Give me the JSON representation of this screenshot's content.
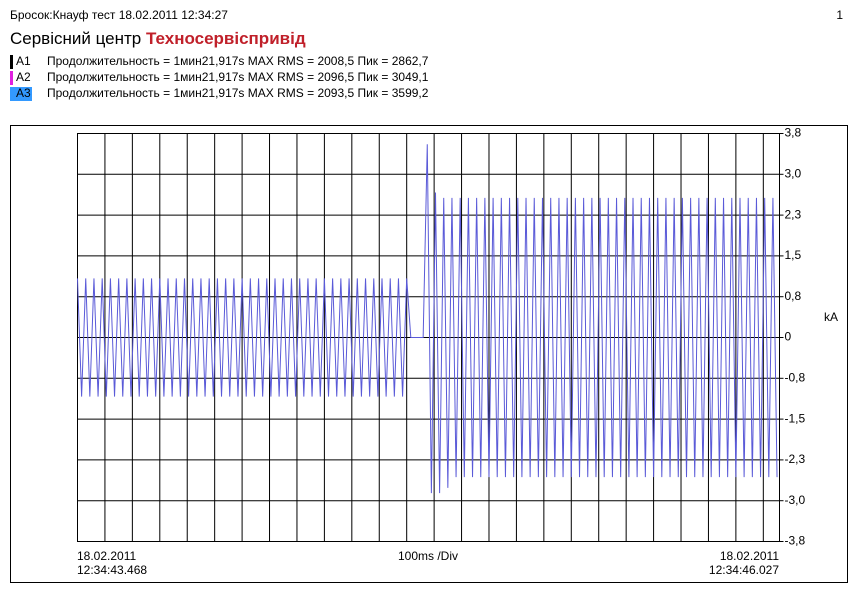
{
  "header": {
    "caption": "Бросок:Кнауф тест 18.02.2011 12:34:27",
    "page": "1",
    "title": "Сервісний центр",
    "brand": "Техносервіспривід"
  },
  "chart_data": {
    "type": "line",
    "legend": [
      {
        "name": "A1",
        "color": "#000000",
        "text": "Продолжительность = 1мин21,917s MAX RMS = 2008,5 Пик = 2862,7"
      },
      {
        "name": "A2",
        "color": "#e020e0",
        "text": "Продолжительность = 1мин21,917s MAX RMS = 2096,5 Пик = 3049,1"
      },
      {
        "name": "A3",
        "color": "#3399ff",
        "text": "Продолжительность = 1мин21,917s MAX RMS = 2093,5 Пик = 3599,2"
      }
    ],
    "y_label": "kA",
    "x_label": "100ms /Div",
    "start_date": "18.02.2011",
    "start_time": "12:34:43.468",
    "end_date": "18.02.2011",
    "end_time": "12:34:46.027",
    "xlim": [
      0,
      2559
    ],
    "xticks": [
      0,
      100,
      200,
      300,
      400,
      500,
      600,
      700,
      800,
      900,
      1000,
      1100,
      1200,
      1300,
      1400,
      1500,
      1600,
      1700,
      1800,
      1900,
      2000,
      2100,
      2200,
      2300,
      2400,
      2500
    ],
    "ylim": [
      -3.8,
      3.8
    ],
    "yticks": [
      {
        "value": 3.8,
        "label": "3,8"
      },
      {
        "value": 3.04,
        "label": "3,0"
      },
      {
        "value": 2.28,
        "label": "2,3"
      },
      {
        "value": 1.52,
        "label": "1,5"
      },
      {
        "value": 0.76,
        "label": "0,8"
      },
      0,
      {
        "value": -0.76,
        "label": "-0,8"
      },
      {
        "value": -1.52,
        "label": "-1,5"
      },
      {
        "value": -2.28,
        "label": "-2,3"
      },
      {
        "value": -3.04,
        "label": "-3,0"
      },
      {
        "value": -3.8,
        "label": "-3,8"
      }
    ],
    "grid": true,
    "series": [
      {
        "color": "#5a5ad8",
        "x": [
          0,
          15,
          30,
          45,
          60,
          75,
          90,
          105,
          120,
          135,
          150,
          165,
          180,
          195,
          210,
          225,
          240,
          255,
          270,
          285,
          300,
          315,
          330,
          345,
          360,
          375,
          390,
          405,
          420,
          435,
          450,
          465,
          480,
          495,
          510,
          525,
          540,
          555,
          570,
          585,
          600,
          615,
          630,
          645,
          660,
          675,
          690,
          705,
          720,
          735,
          750,
          765,
          780,
          795,
          810,
          825,
          840,
          855,
          870,
          885,
          900,
          915,
          930,
          945,
          960,
          975,
          990,
          1005,
          1020,
          1035,
          1050,
          1065,
          1080,
          1095,
          1110,
          1125,
          1140,
          1155,
          1170,
          1185,
          1200,
          1215,
          1230,
          1245,
          1260,
          1275,
          1290,
          1305,
          1320,
          1335,
          1350,
          1365,
          1380,
          1395,
          1410,
          1425,
          1440,
          1455,
          1470,
          1485,
          1500,
          1515,
          1530,
          1545,
          1560,
          1575,
          1590,
          1605,
          1620,
          1635,
          1650,
          1665,
          1680,
          1695,
          1710,
          1725,
          1740,
          1755,
          1770,
          1785,
          1800,
          1815,
          1830,
          1845,
          1860,
          1875,
          1890,
          1905,
          1920,
          1935,
          1950,
          1965,
          1980,
          1995,
          2010,
          2025,
          2040,
          2055,
          2070,
          2085,
          2100,
          2115,
          2130,
          2145,
          2160,
          2175,
          2190,
          2205,
          2220,
          2235,
          2250,
          2265,
          2280,
          2295,
          2310,
          2325,
          2340,
          2355,
          2370,
          2385,
          2400,
          2415,
          2430,
          2445,
          2460,
          2475,
          2490,
          2505,
          2520,
          2535,
          2550
        ],
        "values": [
          1.1,
          -1.1,
          1.1,
          -1.1,
          1.1,
          -1.1,
          1.1,
          -1.1,
          1.1,
          -1.1,
          1.1,
          -1.1,
          1.1,
          -1.1,
          1.1,
          -1.1,
          1.1,
          -1.1,
          1.1,
          -1.1,
          1.1,
          -1.1,
          1.1,
          -1.1,
          1.1,
          -1.1,
          1.1,
          -1.1,
          1.1,
          -1.1,
          1.1,
          -1.1,
          1.1,
          -1.1,
          1.1,
          -1.1,
          1.1,
          -1.1,
          1.1,
          -1.1,
          1.1,
          -1.1,
          1.1,
          -1.1,
          1.1,
          -1.1,
          1.1,
          -1.1,
          1.1,
          -1.1,
          1.1,
          -1.1,
          1.1,
          -1.1,
          1.1,
          -1.1,
          1.1,
          -1.1,
          1.1,
          -1.1,
          1.1,
          -1.1,
          1.1,
          -1.1,
          1.1,
          -1.1,
          1.1,
          -1.1,
          1.1,
          -1.1,
          1.1,
          -1.1,
          1.1,
          -1.1,
          1.1,
          -1.1,
          1.1,
          -1.1,
          1.1,
          -1.1,
          1.1,
          0,
          0,
          0,
          0,
          3.6,
          -2.9,
          2.7,
          -2.9,
          2.6,
          -2.8,
          2.6,
          -2.6,
          2.6,
          -2.6,
          2.6,
          -2.6,
          2.6,
          -2.6,
          2.6,
          -2.6,
          2.6,
          -2.6,
          2.6,
          -2.6,
          2.6,
          -2.6,
          2.6,
          -2.6,
          2.6,
          -2.6,
          2.6,
          -2.6,
          2.6,
          -2.6,
          2.6,
          -2.6,
          2.6,
          -2.6,
          2.6,
          -2.6,
          2.6,
          -2.6,
          2.6,
          -2.6,
          2.6,
          -2.6,
          2.6,
          -2.6,
          2.6,
          -2.6,
          2.6,
          -2.6,
          2.6,
          -2.6,
          2.6,
          -2.6,
          2.6,
          -2.6,
          2.6,
          -2.6,
          2.6,
          -2.6,
          2.6,
          -2.6,
          2.6,
          -2.6,
          2.6,
          -2.6,
          2.6,
          -2.6,
          2.6,
          -2.6,
          2.6,
          -2.6,
          2.6,
          -2.6,
          2.6,
          -2.6,
          2.6,
          -2.6,
          2.6,
          -2.6,
          2.6,
          -2.6,
          2.6,
          -2.6,
          2.6,
          -2.6,
          2.6,
          -2.6
        ]
      }
    ]
  }
}
